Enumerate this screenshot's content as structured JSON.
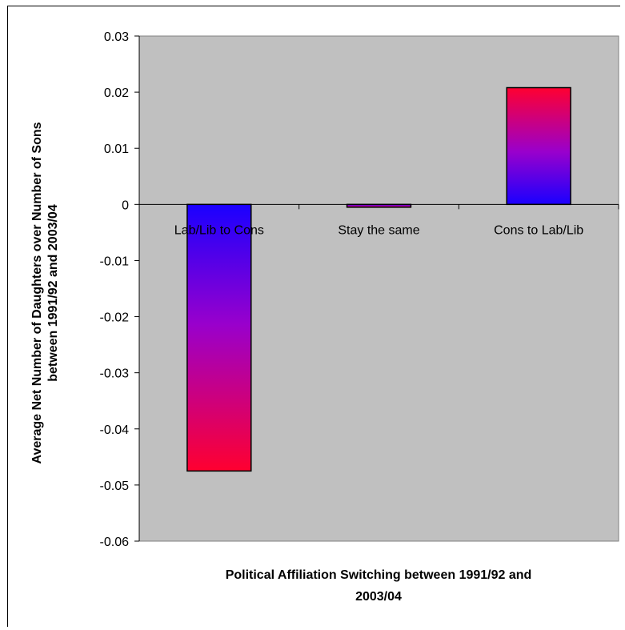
{
  "chart_data": {
    "type": "bar",
    "categories": [
      "Lab/Lib to Cons",
      "Stay the same",
      "Cons to Lab/Lib"
    ],
    "values": [
      -0.0475,
      -0.0005,
      0.0208
    ],
    "xlabel": [
      "Political Affiliation Switching between 1991/92 and",
      "2003/04"
    ],
    "ylabel": [
      "Average Net Number of Daughters over Number of Sons",
      "between 1991/92 and 2003/04"
    ],
    "ylim": [
      -0.06,
      0.03
    ],
    "yticks": [
      "0.03",
      "0.02",
      "0.01",
      "0",
      "-0.01",
      "-0.02",
      "-0.03",
      "-0.04",
      "-0.05",
      "-0.06"
    ],
    "ytick_values": [
      0.03,
      0.02,
      0.01,
      0,
      -0.01,
      -0.02,
      -0.03,
      -0.04,
      -0.05,
      -0.06
    ],
    "plot_background": "#c0c0c0",
    "bar_gradient": {
      "positive_end": "#ff0033",
      "negative_end": "#0000ff",
      "middle": "#9900cc"
    },
    "grid": false,
    "legend": "none"
  }
}
